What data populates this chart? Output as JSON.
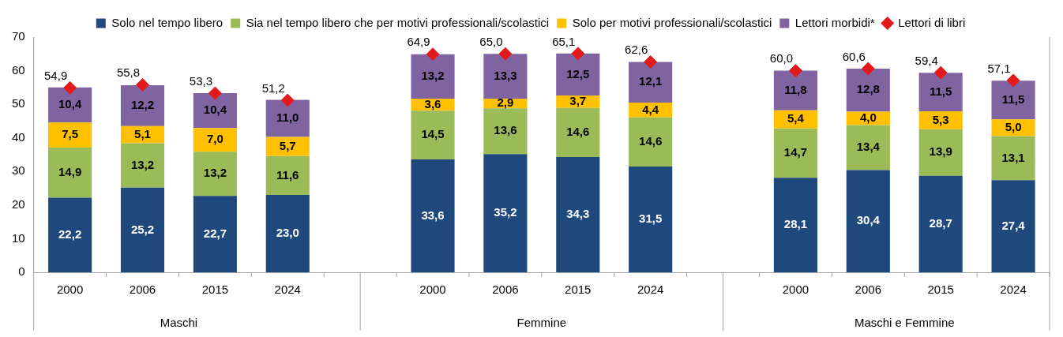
{
  "chart_data": {
    "type": "bar",
    "stacked": true,
    "legend": "top",
    "grid": false,
    "data_labels": true,
    "categories": [
      "2000",
      "2006",
      "2015",
      "2024",
      null,
      "2000",
      "2006",
      "2015",
      "2024",
      null,
      "2000",
      "2006",
      "2015",
      "2024"
    ],
    "annotations": [
      "Maschi",
      "Femmine",
      "Maschi e Femmine"
    ],
    "ylim": [
      0,
      70
    ],
    "yticks": [
      0,
      10,
      20,
      30,
      40,
      50,
      60,
      70
    ],
    "series": [
      {
        "name": "Solo nel tempo libero",
        "color": "#1f497d",
        "values": [
          22.2,
          25.2,
          22.7,
          23.0,
          null,
          33.6,
          35.2,
          34.3,
          31.5,
          null,
          28.1,
          30.4,
          28.7,
          27.4
        ],
        "value_labels": [
          "22,2",
          "25,2",
          "22,7",
          "23,0",
          null,
          "33,6",
          "35,2",
          "34,3",
          "31,5",
          null,
          "28,1",
          "30,4",
          "28,7",
          "27,4"
        ]
      },
      {
        "name": "Sia nel tempo libero che per motivi professionali/scolastici",
        "color": "#9bbb59",
        "values": [
          14.9,
          13.2,
          13.2,
          11.6,
          null,
          14.5,
          13.6,
          14.6,
          14.6,
          null,
          14.7,
          13.4,
          13.9,
          13.1
        ],
        "value_labels": [
          "14,9",
          "13,2",
          "13,2",
          "11,6",
          null,
          "14,5",
          "13,6",
          "14,6",
          "14,6",
          null,
          "14,7",
          "13,4",
          "13,9",
          "13,1"
        ]
      },
      {
        "name": "Solo per motivi professionali/scolastici",
        "color": "#ffc000",
        "values": [
          7.5,
          5.1,
          7.0,
          5.7,
          null,
          3.6,
          2.9,
          3.7,
          4.4,
          null,
          5.4,
          4.0,
          5.3,
          5.0
        ],
        "value_labels": [
          "7,5",
          "5,1",
          "7,0",
          "5,7",
          null,
          "3,6",
          "2,9",
          "3,7",
          "4,4",
          null,
          "5,4",
          "4,0",
          "5,3",
          "5,0"
        ]
      },
      {
        "name": "Lettori morbidi*",
        "color": "#8064a2",
        "values": [
          10.4,
          12.2,
          10.4,
          11.0,
          null,
          13.2,
          13.3,
          12.5,
          12.1,
          null,
          11.8,
          12.8,
          11.5,
          11.5
        ],
        "value_labels": [
          "10,4",
          "12,2",
          "10,4",
          "11,0",
          null,
          "13,2",
          "13,3",
          "12,5",
          "12,1",
          null,
          "11,8",
          "12,8",
          "11,5",
          "11,5"
        ]
      },
      {
        "name": "Lettori di libri",
        "type": "scatter",
        "marker": "diamond",
        "color": "#e31a1c",
        "values": [
          54.9,
          55.8,
          53.3,
          51.2,
          null,
          64.9,
          65.0,
          65.1,
          62.6,
          null,
          60.0,
          60.6,
          59.4,
          57.1
        ],
        "value_labels": [
          "54,9",
          "55,8",
          "53,3",
          "51,2",
          null,
          "64,9",
          "65,0",
          "65,1",
          "62,6",
          null,
          "60,0",
          "60,6",
          "59,4",
          "57,1"
        ]
      }
    ]
  }
}
